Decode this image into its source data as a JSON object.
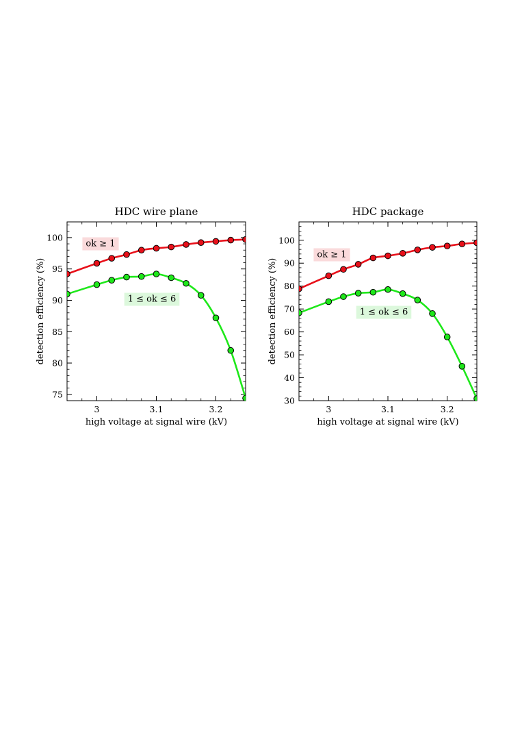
{
  "chart_data": [
    {
      "type": "line",
      "title": "HDC wire plane",
      "xlabel": "high voltage at signal wire  (kV)",
      "ylabel": "detection efficiency  (%)",
      "xlim": [
        2.95,
        3.25
      ],
      "ylim": [
        74,
        102.5
      ],
      "xticks": [
        3,
        3.1,
        3.2
      ],
      "xtick_labels": [
        "3",
        "3.1",
        "3.2"
      ],
      "yticks": [
        75,
        80,
        85,
        90,
        95,
        100
      ],
      "ytick_labels": [
        "75",
        "80",
        "85",
        "90",
        "95",
        "100"
      ],
      "grid": false,
      "x": [
        2.95,
        3.0,
        3.025,
        3.05,
        3.075,
        3.1,
        3.125,
        3.15,
        3.175,
        3.2,
        3.225,
        3.25
      ],
      "series": [
        {
          "name": "ok ≥ 1",
          "color": "#e8101a",
          "label_bg": "#fadadb",
          "x": [
            2.95,
            3.0,
            3.025,
            3.05,
            3.075,
            3.1,
            3.125,
            3.15,
            3.175,
            3.2,
            3.225,
            3.25
          ],
          "values": [
            94.2,
            95.9,
            96.7,
            97.3,
            98.0,
            98.3,
            98.5,
            98.9,
            99.2,
            99.4,
            99.6,
            99.7
          ]
        },
        {
          "name": "1 ≤ ok ≤ 6",
          "color": "#1ee81a",
          "label_bg": "#dcf8dc",
          "x": [
            2.95,
            3.0,
            3.025,
            3.05,
            3.075,
            3.1,
            3.125,
            3.15,
            3.175,
            3.2,
            3.225,
            3.25
          ],
          "values": [
            91.0,
            92.5,
            93.2,
            93.7,
            93.8,
            94.2,
            93.6,
            92.7,
            90.8,
            87.2,
            82.0,
            74.4
          ]
        }
      ]
    },
    {
      "type": "line",
      "title": "HDC package",
      "xlabel": "high voltage at signal wire  (kV)",
      "ylabel": "detection efficiency  (%)",
      "xlim": [
        2.95,
        3.25
      ],
      "ylim": [
        30,
        108
      ],
      "xticks": [
        3,
        3.1,
        3.2
      ],
      "xtick_labels": [
        "3",
        "3.1",
        "3.2"
      ],
      "yticks": [
        30,
        40,
        50,
        60,
        70,
        80,
        90,
        100
      ],
      "ytick_labels": [
        "30",
        "40",
        "50",
        "60",
        "70",
        "80",
        "90",
        "100"
      ],
      "grid": false,
      "series": [
        {
          "name": "ok ≥ 1",
          "color": "#e8101a",
          "label_bg": "#fadadb",
          "x": [
            2.95,
            3.0,
            3.025,
            3.05,
            3.075,
            3.1,
            3.125,
            3.15,
            3.175,
            3.2,
            3.225,
            3.25
          ],
          "values": [
            78.8,
            84.5,
            87.3,
            89.5,
            92.3,
            93.2,
            94.3,
            95.8,
            96.9,
            97.5,
            98.4,
            98.9
          ]
        },
        {
          "name": "1 ≤ ok ≤ 6",
          "color": "#1ee81a",
          "label_bg": "#dcf8dc",
          "x": [
            2.95,
            3.0,
            3.025,
            3.05,
            3.075,
            3.1,
            3.125,
            3.15,
            3.175,
            3.2,
            3.225,
            3.25
          ],
          "values": [
            68.3,
            73.2,
            75.4,
            76.9,
            77.3,
            78.5,
            76.7,
            73.9,
            68.0,
            57.8,
            45.0,
            30.9
          ]
        }
      ]
    }
  ]
}
